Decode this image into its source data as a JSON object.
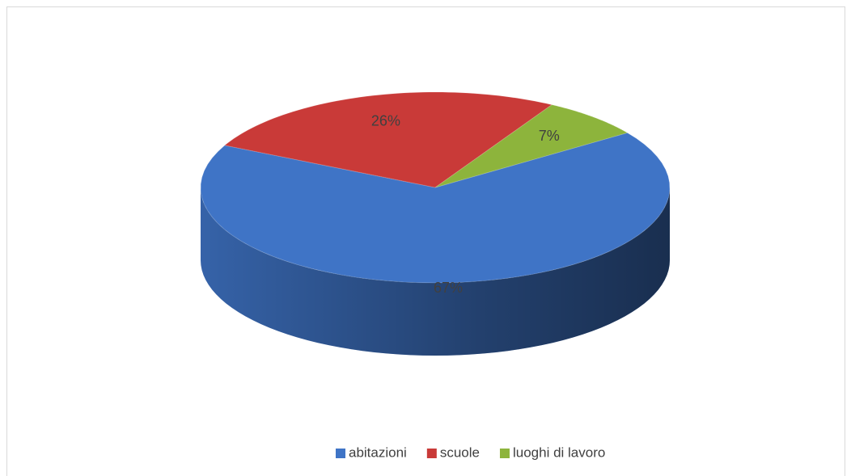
{
  "chart_data": {
    "type": "pie",
    "categories": [
      "abitazioni",
      "scuole",
      "luoghi di lavoro"
    ],
    "values": [
      67,
      26,
      7
    ],
    "value_labels": [
      "67%",
      "26%",
      "7%"
    ],
    "colors": [
      "#3f74c6",
      "#c93a38",
      "#8db43c"
    ],
    "legend": "bottom"
  }
}
